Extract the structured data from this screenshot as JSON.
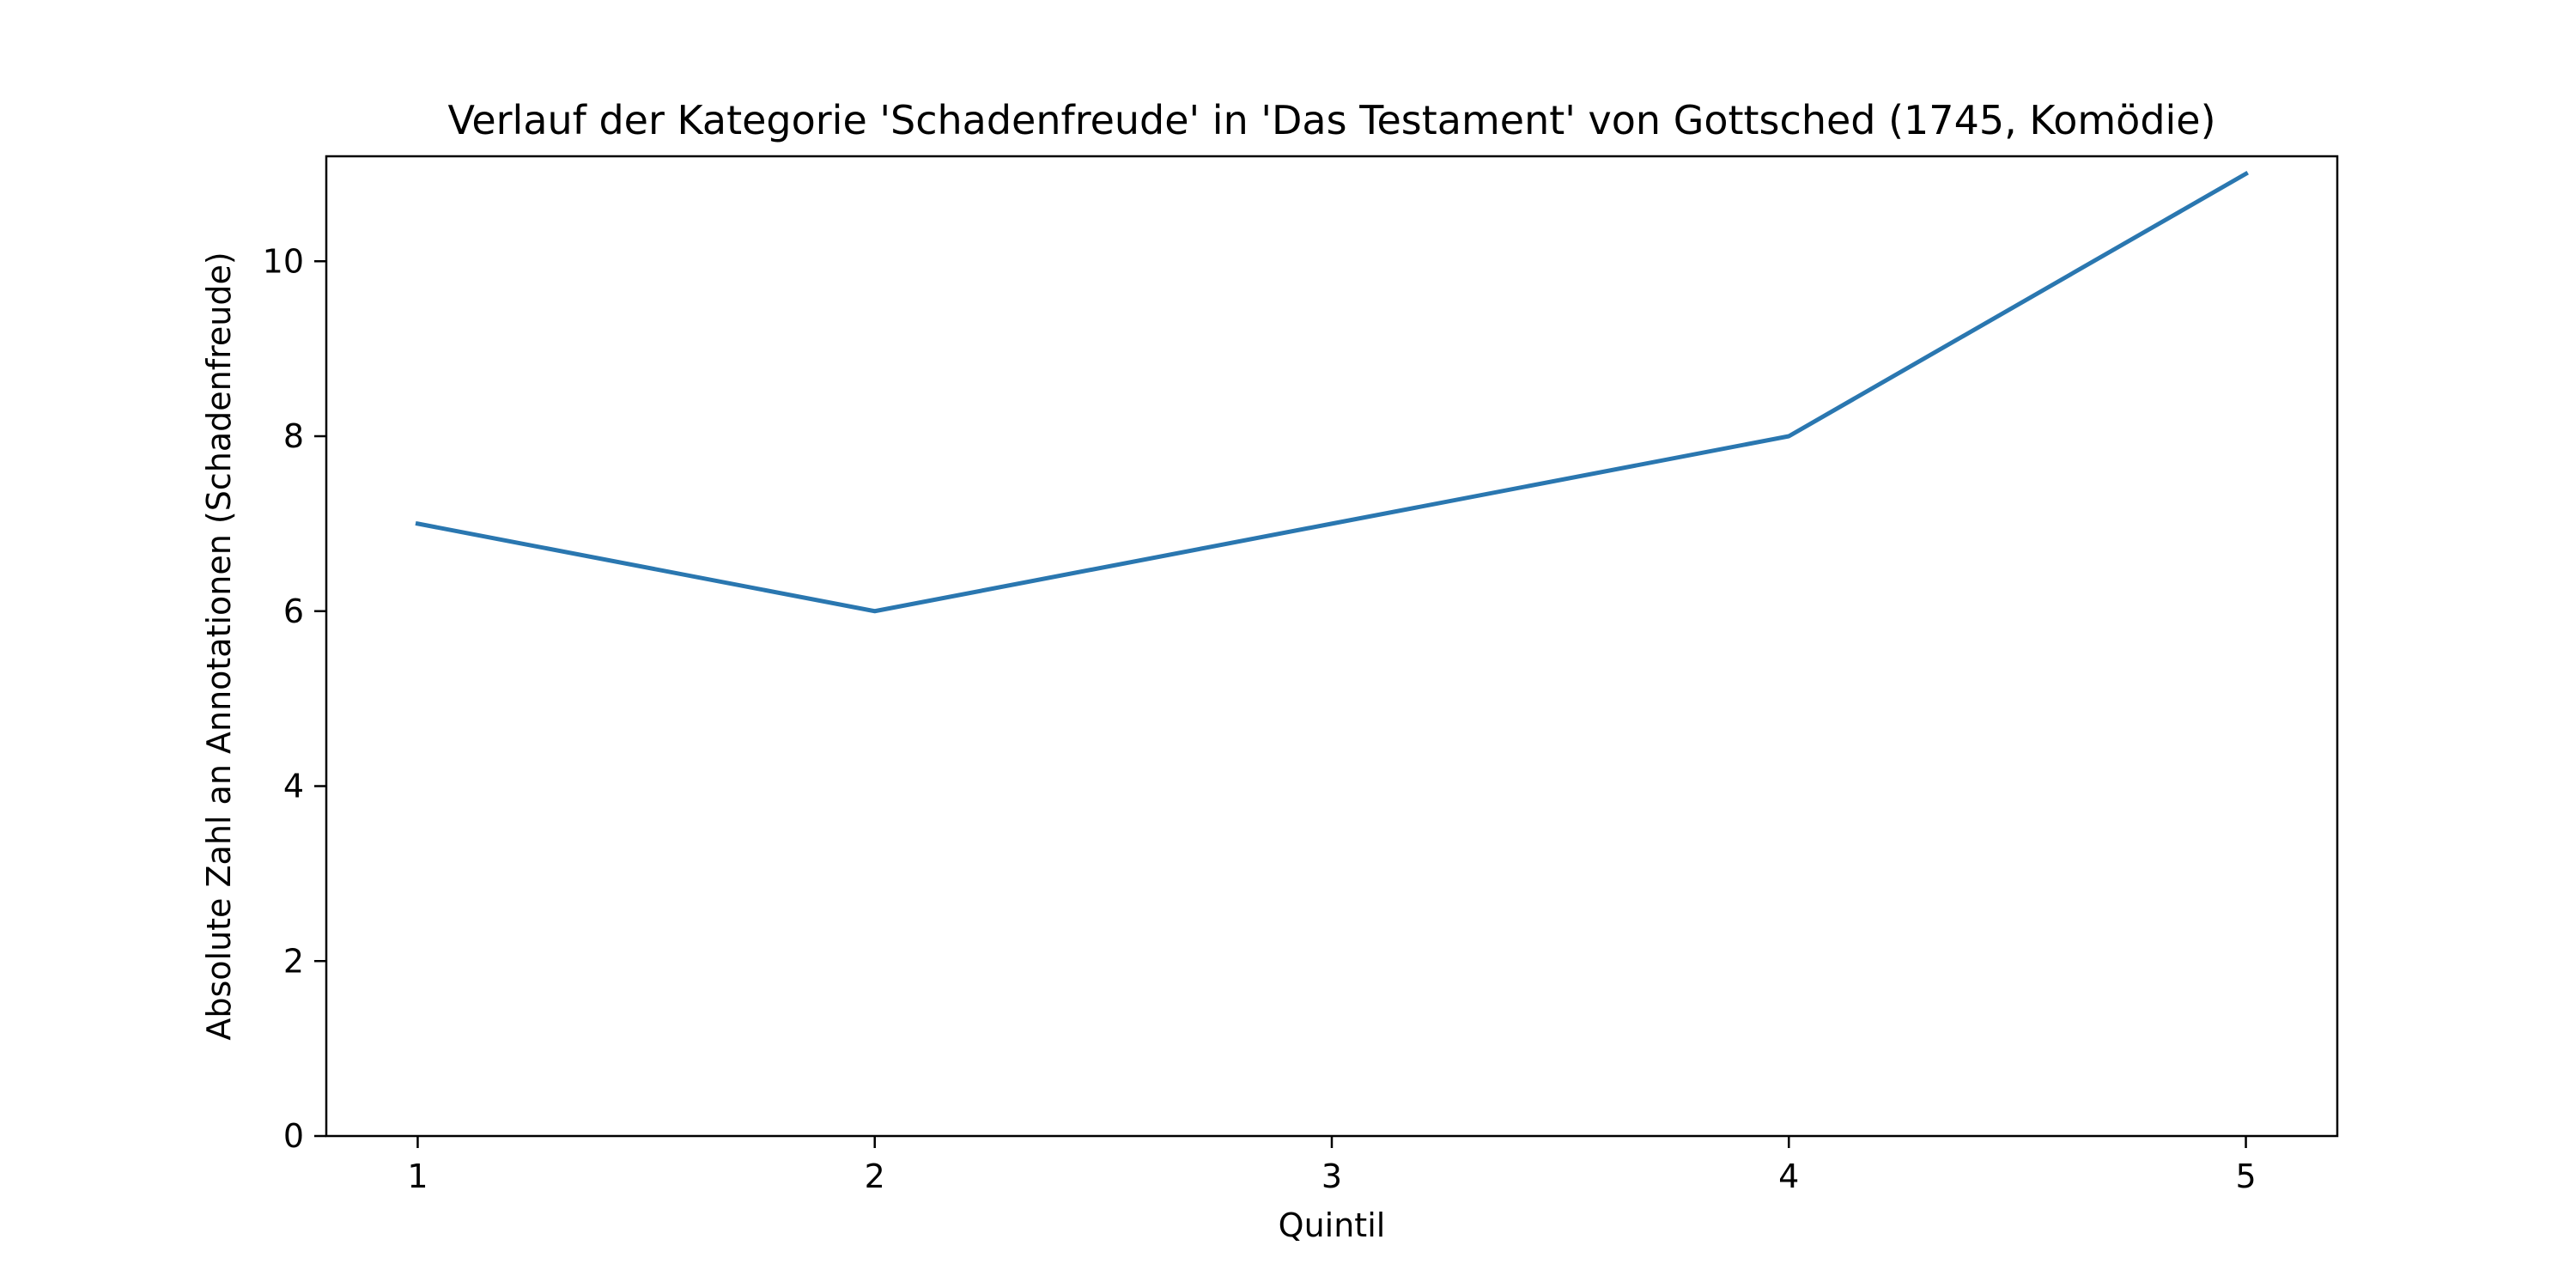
{
  "chart_data": {
    "type": "line",
    "title": "Verlauf der Kategorie 'Schadenfreude' in 'Das Testament' von Gottsched (1745, Komödie)",
    "xlabel": "Quintil",
    "ylabel": "Absolute Zahl an Annotationen (Schadenfreude)",
    "x": [
      1,
      2,
      3,
      4,
      5
    ],
    "values": [
      7,
      6,
      7,
      8,
      11
    ],
    "xlim": [
      0.8,
      5.2
    ],
    "ylim": [
      0,
      11.2
    ],
    "xticks": [
      1,
      2,
      3,
      4,
      5
    ],
    "yticks": [
      0,
      2,
      4,
      6,
      8,
      10
    ],
    "xtick_labels": [
      "1",
      "2",
      "3",
      "4",
      "5"
    ],
    "ytick_labels": [
      "0",
      "2",
      "4",
      "6",
      "8",
      "10"
    ],
    "grid": false,
    "colors": {
      "line": "#2a77b0",
      "axes": "#000000",
      "background": "#ffffff"
    }
  }
}
